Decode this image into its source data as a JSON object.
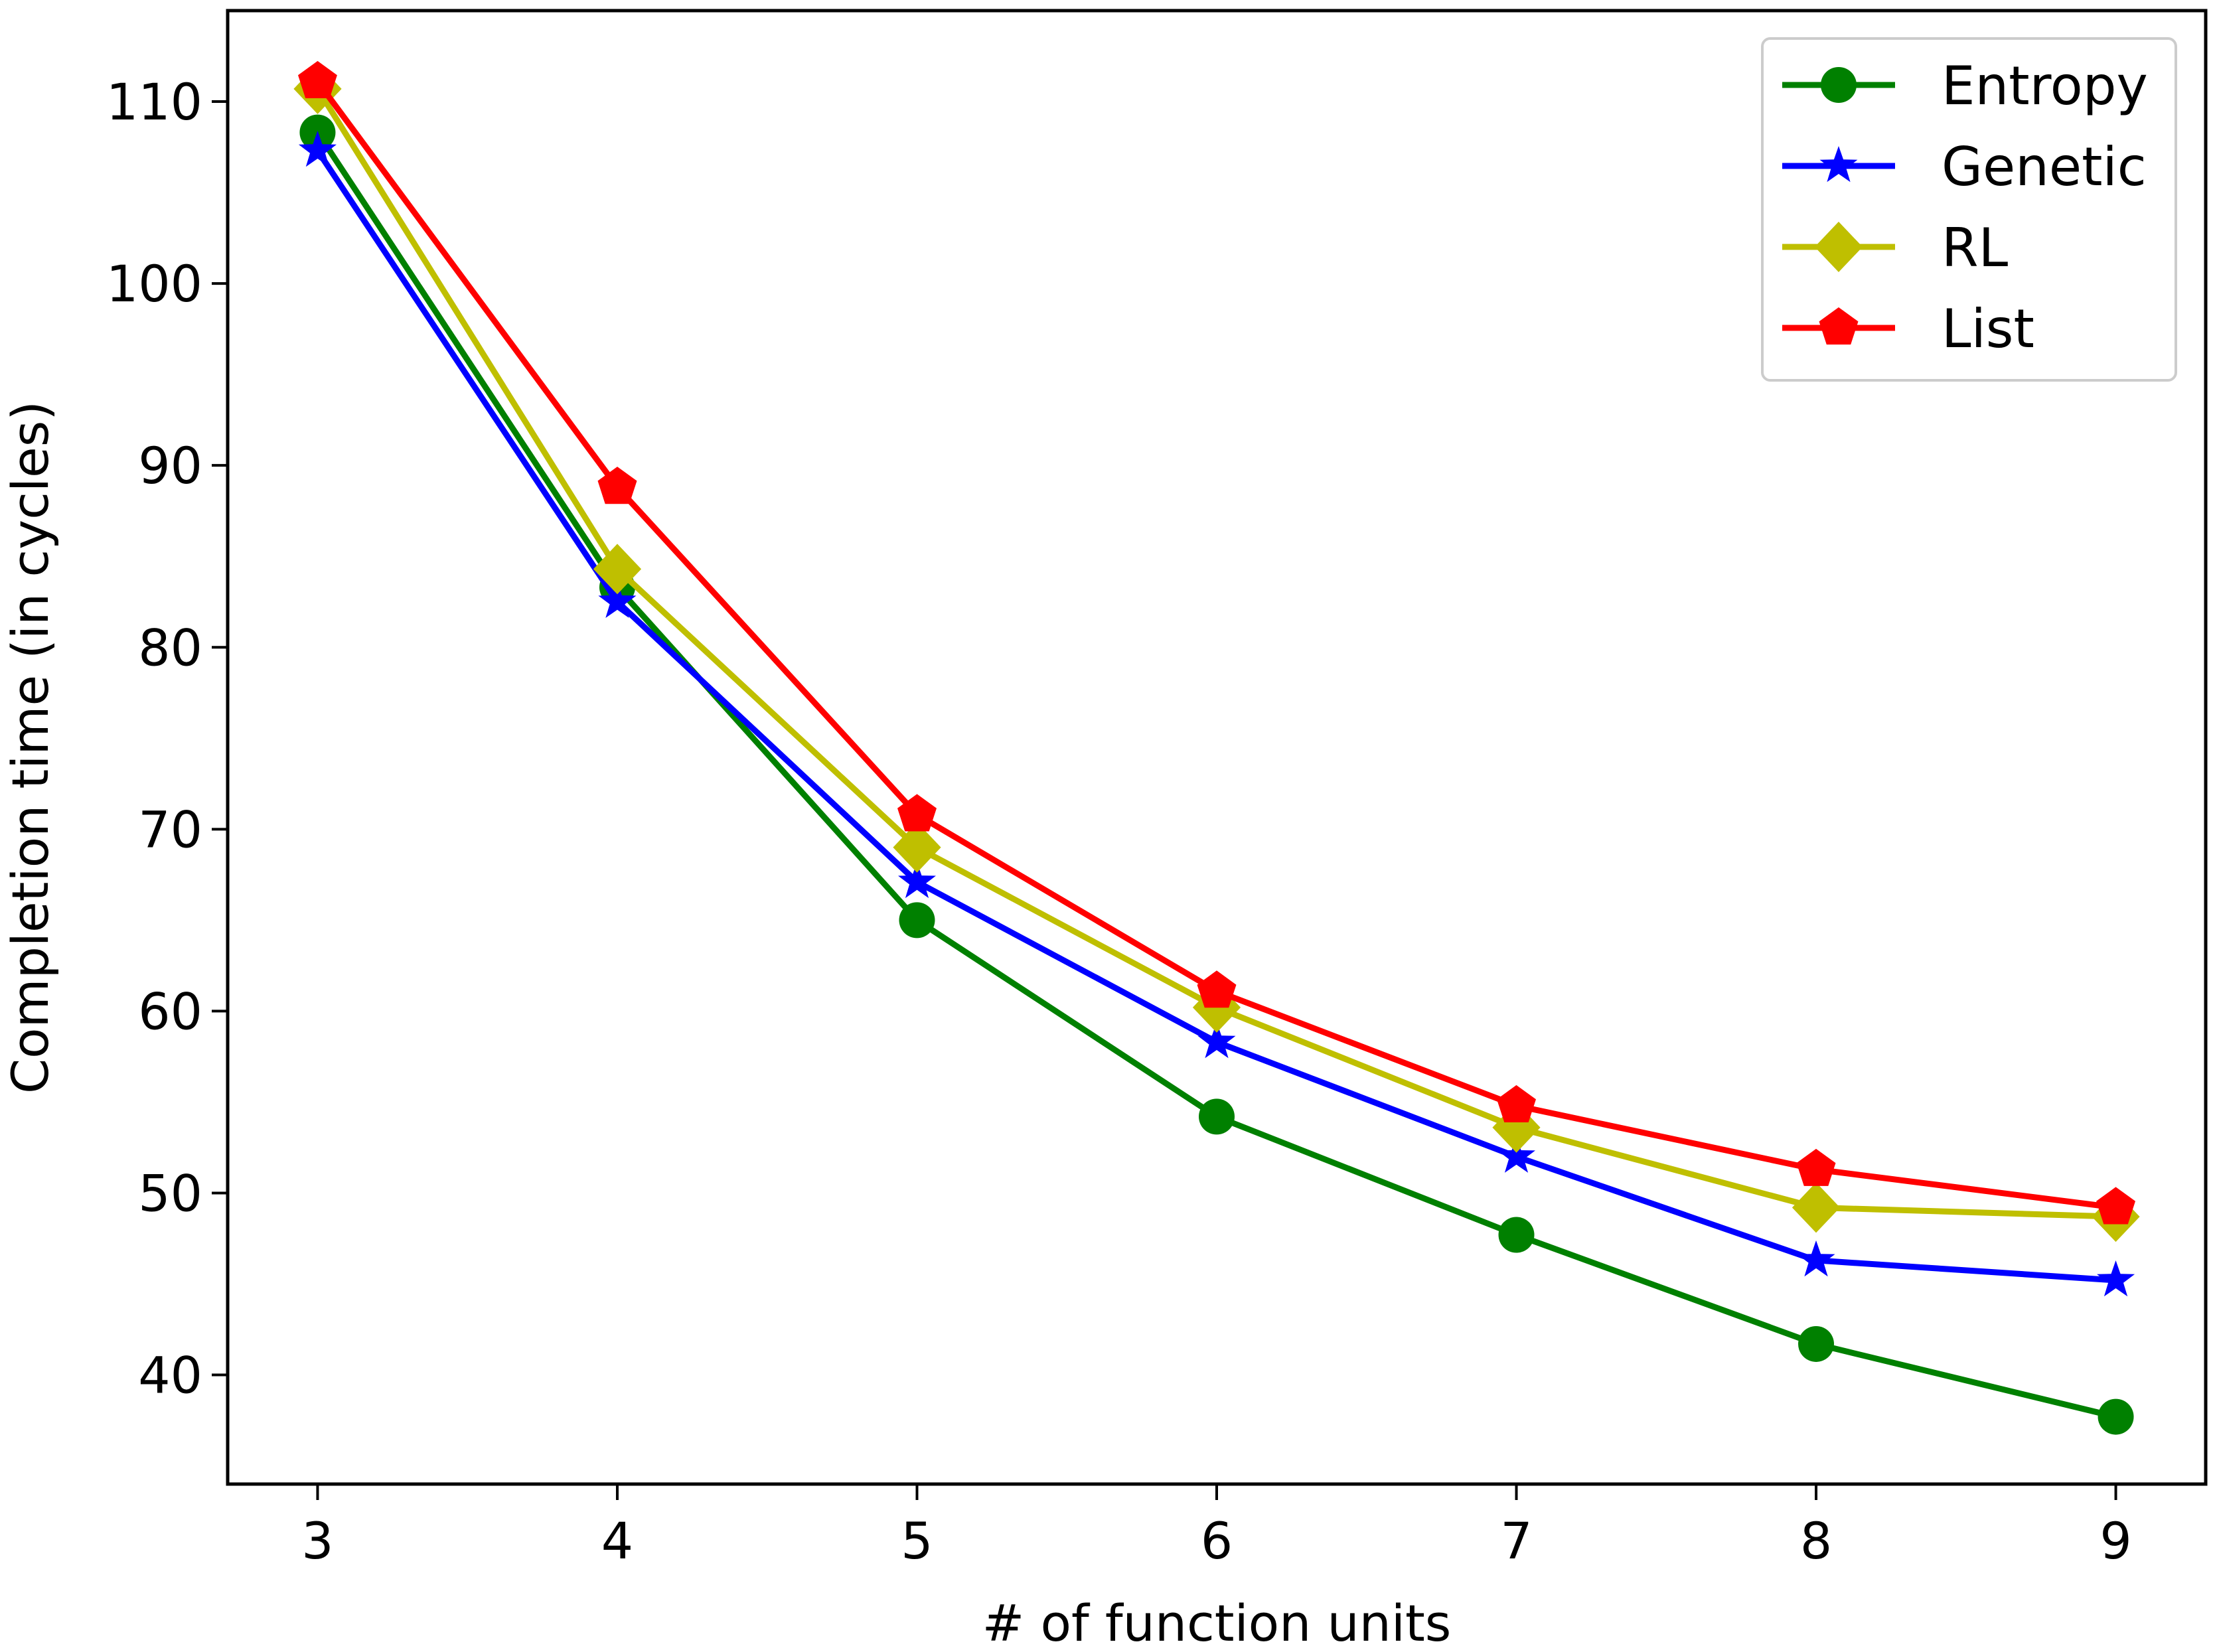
{
  "chart_data": {
    "type": "line",
    "title": "",
    "xlabel": "# of function units",
    "ylabel": "Completion time (in cycles)",
    "x": [
      3,
      4,
      5,
      6,
      7,
      8,
      9
    ],
    "xlim": [
      2.7,
      9.3
    ],
    "ylim": [
      34,
      115
    ],
    "xticks": [
      3,
      4,
      5,
      6,
      7,
      8,
      9
    ],
    "yticks": [
      40,
      50,
      60,
      70,
      80,
      90,
      100,
      110
    ],
    "grid": false,
    "legend_position": "upper right",
    "series": [
      {
        "name": "Entropy",
        "color": "#008000",
        "marker": "circle",
        "values": [
          108.3,
          83.3,
          65.0,
          54.2,
          47.7,
          41.7,
          37.7
        ]
      },
      {
        "name": "Genetic",
        "color": "#0000ff",
        "marker": "star",
        "values": [
          107.3,
          82.5,
          67.1,
          58.3,
          52.0,
          46.3,
          45.2
        ]
      },
      {
        "name": "RL",
        "color": "#bfbf00",
        "marker": "diamond",
        "values": [
          110.7,
          84.3,
          69.0,
          60.2,
          53.6,
          49.2,
          48.7
        ]
      },
      {
        "name": "List",
        "color": "#ff0000",
        "marker": "pentagon",
        "values": [
          111.1,
          88.8,
          70.8,
          61.1,
          54.8,
          51.3,
          49.2
        ]
      }
    ]
  }
}
